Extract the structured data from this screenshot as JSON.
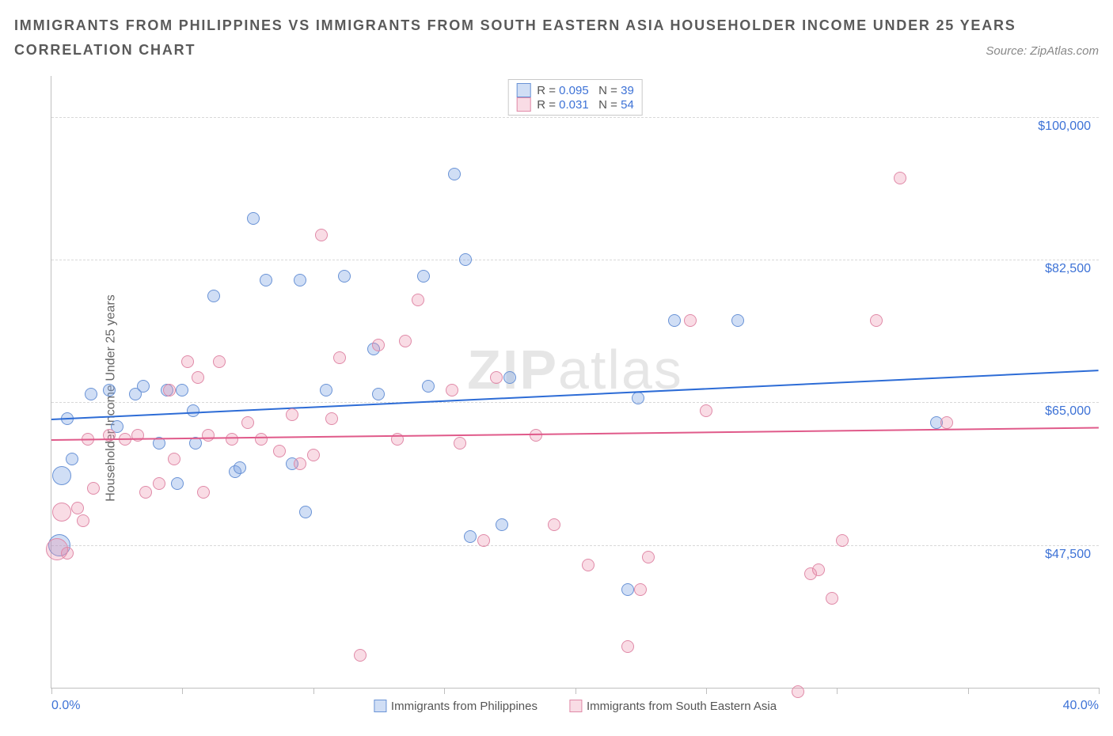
{
  "title_line": "IMMIGRANTS FROM PHILIPPINES VS IMMIGRANTS FROM SOUTH EASTERN ASIA HOUSEHOLDER INCOME UNDER 25 YEARS",
  "subtitle": "CORRELATION CHART",
  "source_prefix": "Source: ",
  "source_name": "ZipAtlas.com",
  "ylabel": "Householder Income Under 25 years",
  "watermark_bold": "ZIP",
  "watermark_rest": "atlas",
  "chart": {
    "type": "scatter",
    "background_color": "#ffffff",
    "grid_color": "#d8d8d8",
    "axis_color": "#bfbfbf",
    "text_color": "#666666",
    "value_color": "#3d72d6",
    "xlim": [
      0,
      40
    ],
    "ylim": [
      30000,
      105000
    ],
    "xlim_labels": [
      "0.0%",
      "40.0%"
    ],
    "y_gridlines": [
      47500,
      65000,
      82500,
      100000
    ],
    "y_labels": [
      "$47,500",
      "$65,000",
      "$82,500",
      "$100,000"
    ],
    "x_ticks": [
      0,
      5,
      10,
      15,
      20,
      25,
      30,
      35,
      40
    ],
    "marker_radius": 8,
    "marker_border_width": 1.2,
    "trend_width": 2,
    "series": [
      {
        "name": "Immigrants from Philippines",
        "fill": "rgba(120,160,225,0.35)",
        "stroke": "#6a93d6",
        "trend_color": "#2d6cd6",
        "R": "0.095",
        "N": "39",
        "trend": {
          "x1": 0,
          "y1": 63000,
          "x2": 40,
          "y2": 69000
        },
        "points": [
          [
            0.3,
            47500,
            14
          ],
          [
            0.4,
            56000,
            12
          ],
          [
            0.6,
            63000
          ],
          [
            0.8,
            58000
          ],
          [
            1.5,
            66000
          ],
          [
            2.2,
            66500
          ],
          [
            2.5,
            62000
          ],
          [
            3.2,
            66000
          ],
          [
            3.5,
            67000
          ],
          [
            4.1,
            60000
          ],
          [
            4.4,
            66500
          ],
          [
            4.8,
            55000
          ],
          [
            5.0,
            66500
          ],
          [
            5.4,
            64000
          ],
          [
            5.5,
            60000
          ],
          [
            6.2,
            78000
          ],
          [
            7.0,
            56500
          ],
          [
            7.2,
            57000
          ],
          [
            7.7,
            87500
          ],
          [
            8.2,
            80000
          ],
          [
            9.2,
            57500
          ],
          [
            9.5,
            80000
          ],
          [
            9.7,
            51500
          ],
          [
            10.5,
            66500
          ],
          [
            11.2,
            80500
          ],
          [
            12.3,
            71500
          ],
          [
            12.5,
            66000
          ],
          [
            14.2,
            80500
          ],
          [
            14.4,
            67000
          ],
          [
            15.4,
            93000
          ],
          [
            15.8,
            82500
          ],
          [
            16.0,
            48500
          ],
          [
            17.2,
            50000
          ],
          [
            17.5,
            68000
          ],
          [
            22.0,
            42000
          ],
          [
            22.4,
            65500
          ],
          [
            23.8,
            75000
          ],
          [
            26.2,
            75000
          ],
          [
            33.8,
            62500
          ]
        ]
      },
      {
        "name": "Immigrants from South Eastern Asia",
        "fill": "rgba(235,140,170,0.30)",
        "stroke": "#e08aa8",
        "trend_color": "#e05a8a",
        "R": "0.031",
        "N": "54",
        "trend": {
          "x1": 0,
          "y1": 60500,
          "x2": 40,
          "y2": 62000
        },
        "points": [
          [
            0.2,
            47000,
            14
          ],
          [
            0.4,
            51500,
            12
          ],
          [
            0.6,
            46500
          ],
          [
            1.0,
            52000
          ],
          [
            1.2,
            50500
          ],
          [
            1.4,
            60500
          ],
          [
            1.6,
            54500
          ],
          [
            2.2,
            61000
          ],
          [
            2.8,
            60500
          ],
          [
            3.3,
            61000
          ],
          [
            3.6,
            54000
          ],
          [
            4.1,
            55000
          ],
          [
            4.5,
            66500
          ],
          [
            4.7,
            58000
          ],
          [
            5.2,
            70000
          ],
          [
            5.6,
            68000
          ],
          [
            5.8,
            54000
          ],
          [
            6.0,
            61000
          ],
          [
            6.4,
            70000
          ],
          [
            6.9,
            60500
          ],
          [
            7.5,
            62500
          ],
          [
            8.0,
            60500
          ],
          [
            8.7,
            59000
          ],
          [
            9.2,
            63500
          ],
          [
            9.5,
            57500
          ],
          [
            10.0,
            58500
          ],
          [
            10.3,
            85500
          ],
          [
            10.7,
            63000
          ],
          [
            11.0,
            70500
          ],
          [
            11.8,
            34000
          ],
          [
            12.5,
            72000
          ],
          [
            13.2,
            60500
          ],
          [
            13.5,
            72500
          ],
          [
            14.0,
            77500
          ],
          [
            15.3,
            66500
          ],
          [
            15.6,
            60000
          ],
          [
            16.5,
            48000
          ],
          [
            17.0,
            68000
          ],
          [
            18.5,
            61000
          ],
          [
            19.2,
            50000
          ],
          [
            20.5,
            45000
          ],
          [
            22.0,
            35000
          ],
          [
            22.5,
            42000
          ],
          [
            22.8,
            46000
          ],
          [
            24.4,
            75000
          ],
          [
            25.0,
            64000
          ],
          [
            28.5,
            29500
          ],
          [
            29.3,
            44500
          ],
          [
            29.8,
            41000
          ],
          [
            30.2,
            48000
          ],
          [
            31.5,
            75000
          ],
          [
            32.4,
            92500
          ],
          [
            34.2,
            62500
          ],
          [
            29.0,
            44000
          ]
        ]
      }
    ],
    "bottom_legend": [
      {
        "label": "Immigrants from Philippines",
        "fill": "rgba(120,160,225,0.35)",
        "stroke": "#6a93d6"
      },
      {
        "label": "Immigrants from South Eastern Asia",
        "fill": "rgba(235,140,170,0.30)",
        "stroke": "#e08aa8"
      }
    ]
  }
}
